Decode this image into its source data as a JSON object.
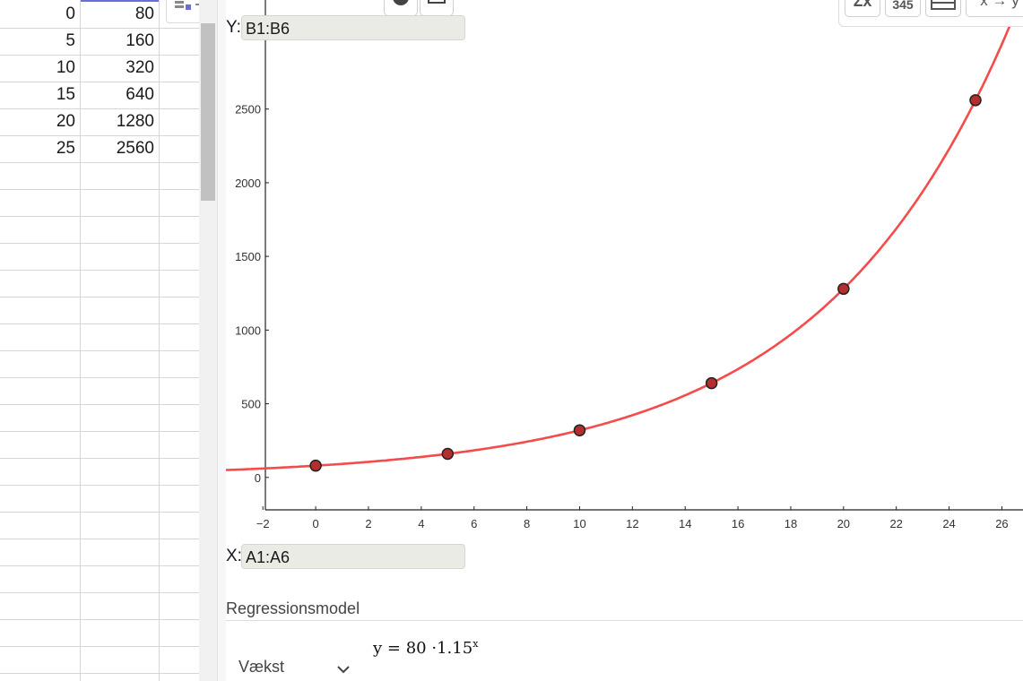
{
  "spreadsheet": {
    "rows": [
      {
        "a": "0",
        "b": "80"
      },
      {
        "a": "5",
        "b": "160"
      },
      {
        "a": "10",
        "b": "320"
      },
      {
        "a": "15",
        "b": "640"
      },
      {
        "a": "20",
        "b": "1280"
      },
      {
        "a": "25",
        "b": "2560"
      }
    ]
  },
  "graph": {
    "y_label": "Y:",
    "y_value": "B1:B6",
    "x_label": "X:",
    "x_value": "A1:A6"
  },
  "regression": {
    "title": "Regressionsmodel",
    "model": "Vækst",
    "formula_lhs": "y",
    "formula_eq": "=",
    "formula_a": "80",
    "formula_dot": "·",
    "formula_b": "1.15",
    "formula_exp": "x"
  },
  "toolbar": {
    "sigma_label": "Σx",
    "stats_label": "345",
    "table_label": "",
    "swap_label": "x → y"
  },
  "colors": {
    "curve": "#f44b4b",
    "point_fill": "#b52e2e",
    "point_stroke": "#222222",
    "axis": "#222222"
  },
  "chart_data": {
    "type": "scatter",
    "x": [
      0,
      5,
      10,
      15,
      20,
      25
    ],
    "y": [
      80,
      160,
      320,
      640,
      1280,
      2560
    ],
    "curve": {
      "a": 80,
      "b": 1.148698
    },
    "xlim": [
      -3.4,
      26.8
    ],
    "ylim": [
      -220,
      3240
    ],
    "xticks": [
      -2,
      0,
      2,
      4,
      6,
      8,
      10,
      12,
      14,
      16,
      18,
      20,
      22,
      24,
      26
    ],
    "yticks": [
      0,
      500,
      1000,
      1500,
      2000,
      2500
    ],
    "grid": false
  }
}
